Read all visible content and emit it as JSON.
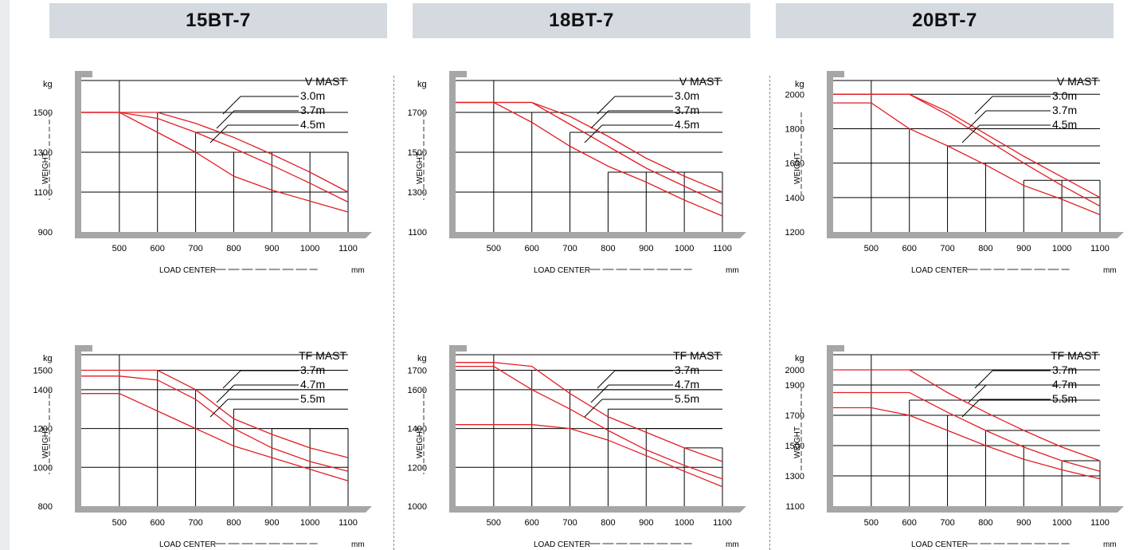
{
  "headers": [
    "15BT-7",
    "18BT-7",
    "20BT-7"
  ],
  "colors": {
    "background": "#ffffff",
    "header_band": "#d4dadf",
    "strip": "#e9ebed",
    "curve": "#e31e24",
    "frame": "#a6a6a6",
    "grid": "#000000"
  },
  "chart_data": [
    {
      "type": "line",
      "model": "15BT-7",
      "mast_title": "V MAST",
      "x_unit": "mm",
      "xlabel": "LOAD CENTER",
      "ylabel": "WEIGHT",
      "y_unit": "kg",
      "xlim": [
        400,
        1100
      ],
      "ylim": [
        900,
        1660
      ],
      "xticks": [
        500,
        600,
        700,
        800,
        900,
        1000,
        1100
      ],
      "yticks": [
        900,
        1100,
        1300,
        1500
      ],
      "step_heights": [
        1660,
        1500,
        1400,
        1300
      ],
      "series": [
        {
          "name": "3.0m",
          "x": [
            400,
            500,
            600,
            700,
            800,
            900,
            1000,
            1100
          ],
          "y": [
            1500,
            1500,
            1500,
            1445,
            1375,
            1290,
            1200,
            1100
          ]
        },
        {
          "name": "3.7m",
          "x": [
            400,
            500,
            600,
            700,
            800,
            900,
            1000,
            1100
          ],
          "y": [
            1500,
            1500,
            1470,
            1400,
            1320,
            1235,
            1145,
            1050
          ]
        },
        {
          "name": "4.5m",
          "x": [
            400,
            500,
            600,
            700,
            800,
            900,
            1000,
            1100
          ],
          "y": [
            1500,
            1500,
            1400,
            1300,
            1180,
            1110,
            1055,
            1000
          ]
        }
      ]
    },
    {
      "type": "line",
      "model": "18BT-7",
      "mast_title": "V MAST",
      "x_unit": "mm",
      "xlabel": "LOAD CENTER",
      "ylabel": "WEIGHT",
      "y_unit": "kg",
      "xlim": [
        400,
        1100
      ],
      "ylim": [
        1100,
        1860
      ],
      "xticks": [
        500,
        600,
        700,
        800,
        900,
        1000,
        1100
      ],
      "yticks": [
        1100,
        1300,
        1500,
        1700
      ],
      "step_heights": [
        1860,
        1700,
        1600,
        1400
      ],
      "series": [
        {
          "name": "3.0m",
          "x": [
            400,
            500,
            600,
            700,
            800,
            900,
            1000,
            1100
          ],
          "y": [
            1750,
            1750,
            1750,
            1680,
            1580,
            1470,
            1380,
            1300
          ]
        },
        {
          "name": "3.7m",
          "x": [
            400,
            500,
            600,
            700,
            800,
            900,
            1000,
            1100
          ],
          "y": [
            1750,
            1750,
            1750,
            1640,
            1530,
            1420,
            1330,
            1240
          ]
        },
        {
          "name": "4.5m",
          "x": [
            400,
            500,
            600,
            700,
            800,
            900,
            1000,
            1100
          ],
          "y": [
            1750,
            1750,
            1650,
            1530,
            1430,
            1350,
            1260,
            1180
          ]
        }
      ]
    },
    {
      "type": "line",
      "model": "20BT-7",
      "mast_title": "V MAST",
      "x_unit": "mm",
      "xlabel": "LOAD CENTER",
      "ylabel": "WEIGHT",
      "y_unit": "kg",
      "xlim": [
        400,
        1100
      ],
      "ylim": [
        1200,
        2080
      ],
      "xticks": [
        500,
        600,
        700,
        800,
        900,
        1000,
        1100
      ],
      "yticks": [
        1200,
        1400,
        1600,
        1800,
        2000
      ],
      "step_heights": [
        2080,
        1800,
        1700,
        1600,
        1500
      ],
      "series": [
        {
          "name": "3.0m",
          "x": [
            400,
            500,
            600,
            700,
            800,
            900,
            1000,
            1100
          ],
          "y": [
            2000,
            2000,
            2000,
            1900,
            1770,
            1640,
            1520,
            1400
          ]
        },
        {
          "name": "3.7m",
          "x": [
            400,
            500,
            600,
            700,
            800,
            900,
            1000,
            1100
          ],
          "y": [
            2000,
            2000,
            2000,
            1880,
            1740,
            1600,
            1470,
            1350
          ]
        },
        {
          "name": "4.5m",
          "x": [
            400,
            500,
            600,
            700,
            800,
            900,
            1000,
            1100
          ],
          "y": [
            1950,
            1950,
            1800,
            1700,
            1590,
            1470,
            1390,
            1300
          ]
        }
      ]
    },
    {
      "type": "line",
      "model": "15BT-7",
      "mast_title": "TF  MAST",
      "x_unit": "mm",
      "xlabel": "LOAD CENTER",
      "ylabel": "WEIGHT",
      "y_unit": "kg",
      "xlim": [
        400,
        1100
      ],
      "ylim": [
        800,
        1580
      ],
      "xticks": [
        500,
        600,
        700,
        800,
        900,
        1000,
        1100
      ],
      "yticks": [
        800,
        1000,
        1200,
        1400,
        1500
      ],
      "step_heights": [
        1580,
        1500,
        1400,
        1300,
        1200
      ],
      "series": [
        {
          "name": "3.7m",
          "x": [
            400,
            500,
            600,
            700,
            800,
            900,
            1000,
            1100
          ],
          "y": [
            1500,
            1500,
            1500,
            1400,
            1250,
            1170,
            1100,
            1050
          ]
        },
        {
          "name": "4.7m",
          "x": [
            400,
            500,
            600,
            700,
            800,
            900,
            1000,
            1100
          ],
          "y": [
            1470,
            1470,
            1450,
            1350,
            1200,
            1100,
            1030,
            980
          ]
        },
        {
          "name": "5.5m",
          "x": [
            400,
            500,
            600,
            700,
            800,
            900,
            1000,
            1100
          ],
          "y": [
            1380,
            1380,
            1290,
            1200,
            1110,
            1050,
            990,
            930
          ]
        }
      ]
    },
    {
      "type": "line",
      "model": "18BT-7",
      "mast_title": "TF  MAST",
      "x_unit": "mm",
      "xlabel": "LOAD CENTER",
      "ylabel": "WEIGHT",
      "y_unit": "kg",
      "xlim": [
        400,
        1100
      ],
      "ylim": [
        1000,
        1780
      ],
      "xticks": [
        500,
        600,
        700,
        800,
        900,
        1000,
        1100
      ],
      "yticks": [
        1000,
        1200,
        1400,
        1600,
        1700
      ],
      "step_heights": [
        1780,
        1700,
        1600,
        1500,
        1400,
        1300
      ],
      "series": [
        {
          "name": "3.7m",
          "x": [
            400,
            500,
            600,
            700,
            800,
            900,
            1000,
            1100
          ],
          "y": [
            1740,
            1740,
            1720,
            1580,
            1460,
            1380,
            1300,
            1230
          ]
        },
        {
          "name": "4.7m",
          "x": [
            400,
            500,
            600,
            700,
            800,
            900,
            1000,
            1100
          ],
          "y": [
            1720,
            1720,
            1600,
            1500,
            1390,
            1290,
            1210,
            1140
          ]
        },
        {
          "name": "5.5m",
          "x": [
            400,
            500,
            600,
            700,
            800,
            900,
            1000,
            1100
          ],
          "y": [
            1420,
            1420,
            1420,
            1400,
            1340,
            1260,
            1180,
            1100
          ]
        }
      ]
    },
    {
      "type": "line",
      "model": "20BT-7",
      "mast_title": "TF  MAST",
      "x_unit": "mm",
      "xlabel": "LOAD CENTER",
      "ylabel": "WEIGHT",
      "y_unit": "kg",
      "xlim": [
        400,
        1100
      ],
      "ylim": [
        1100,
        2100
      ],
      "xticks": [
        500,
        600,
        700,
        800,
        900,
        1000,
        1100
      ],
      "yticks": [
        1100,
        1300,
        1500,
        1700,
        1900,
        2000
      ],
      "step_heights": [
        2100,
        1800,
        1700,
        1600,
        1500,
        1400
      ],
      "series": [
        {
          "name": "3.7m",
          "x": [
            400,
            500,
            600,
            700,
            800,
            900,
            1000,
            1100
          ],
          "y": [
            2000,
            2000,
            2000,
            1850,
            1720,
            1600,
            1490,
            1400
          ]
        },
        {
          "name": "4.7m",
          "x": [
            400,
            500,
            600,
            700,
            800,
            900,
            1000,
            1100
          ],
          "y": [
            1850,
            1850,
            1850,
            1720,
            1600,
            1490,
            1400,
            1330
          ]
        },
        {
          "name": "5.5m",
          "x": [
            400,
            500,
            600,
            700,
            800,
            900,
            1000,
            1100
          ],
          "y": [
            1750,
            1750,
            1700,
            1600,
            1500,
            1410,
            1340,
            1280
          ]
        }
      ]
    }
  ]
}
